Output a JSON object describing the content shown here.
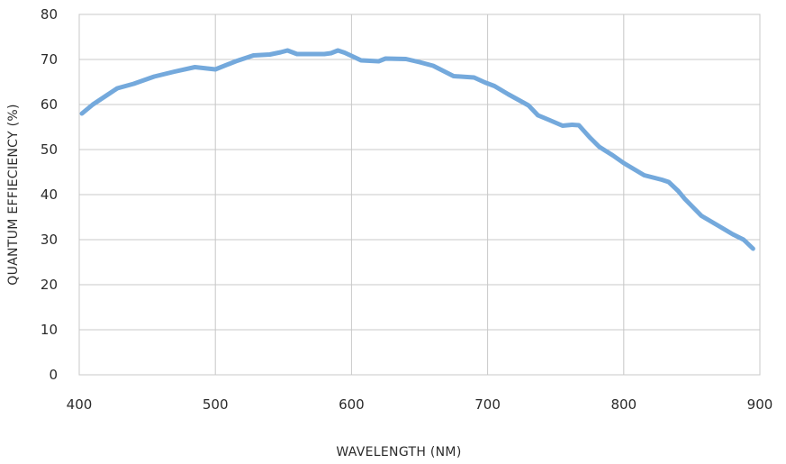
{
  "chart_data": {
    "type": "line",
    "xlabel": "WAVELENGTH (NM)",
    "ylabel": "QUANTUM EFFIECIENCY (%)",
    "xlim": [
      400,
      900
    ],
    "ylim": [
      0,
      80
    ],
    "xticks": [
      400,
      500,
      600,
      700,
      800,
      900
    ],
    "yticks": [
      0,
      10,
      20,
      30,
      40,
      50,
      60,
      70,
      80
    ],
    "grid": true,
    "legend": "none",
    "line_color": "#74a9dc",
    "series": [
      {
        "x": [
          402,
          410,
          420,
          428,
          440,
          455,
          470,
          485,
          500,
          515,
          528,
          540,
          548,
          553,
          560,
          570,
          580,
          585,
          590,
          595,
          600,
          607,
          620,
          625,
          640,
          650,
          660,
          675,
          690,
          698,
          705,
          715,
          730,
          737,
          745,
          755,
          762,
          767,
          775,
          782,
          792,
          800,
          815,
          828,
          833,
          840,
          845,
          857,
          870,
          880,
          888,
          895
        ],
        "y": [
          58,
          60,
          62,
          63.6,
          64.6,
          66.2,
          67.3,
          68.3,
          67.8,
          69.6,
          70.9,
          71.1,
          71.6,
          72.0,
          71.2,
          71.2,
          71.2,
          71.4,
          72.0,
          71.5,
          70.8,
          69.8,
          69.6,
          70.2,
          70.1,
          69.4,
          68.6,
          66.3,
          66.0,
          64.9,
          64.1,
          62.3,
          59.8,
          57.6,
          56.6,
          55.3,
          55.5,
          55.4,
          52.7,
          50.6,
          48.7,
          47.0,
          44.3,
          43.3,
          42.8,
          40.8,
          39.0,
          35.3,
          33.0,
          31.2,
          30.0,
          28.0
        ]
      }
    ]
  }
}
